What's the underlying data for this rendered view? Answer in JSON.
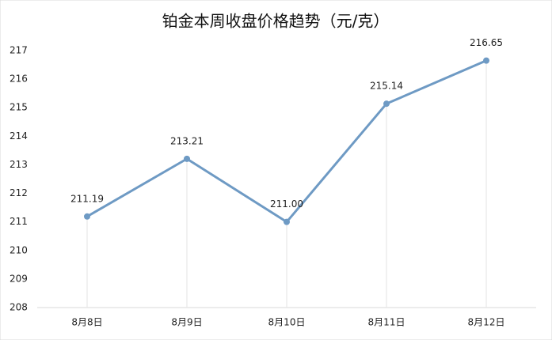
{
  "chart_data": {
    "type": "line",
    "title": "铂金本周收盘价格趋势（元/克）",
    "categories": [
      "8月8日",
      "8月9日",
      "8月10日",
      "8月11日",
      "8月12日"
    ],
    "values": [
      211.19,
      213.21,
      211.0,
      215.14,
      216.65
    ],
    "value_labels": [
      "211.19",
      "213.21",
      "211.00",
      "215.14",
      "216.65"
    ],
    "color": "#6e9ac4",
    "ylim": [
      208,
      217
    ],
    "yticks": [
      208,
      209,
      210,
      211,
      212,
      213,
      214,
      215,
      216,
      217
    ],
    "drop_lines": true
  }
}
